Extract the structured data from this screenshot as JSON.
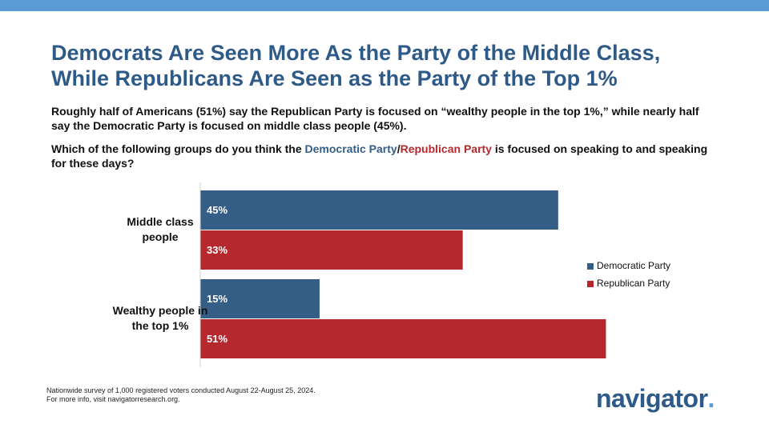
{
  "header": {
    "title_lines": [
      "Democrats Are Seen More As the Party of the Middle Class,",
      "While Republicans Are Seen as the Party of the Top 1%"
    ],
    "subtitle": "Roughly half of Americans (51%) say the Republican Party is focused on “wealthy people in the top 1%,” while nearly half say the Democratic Party is focused on middle class people (45%).",
    "question": {
      "before": "Which of the following groups do you think the ",
      "democratic": "Democratic Party",
      "separator": "/",
      "republican": "Republican Party",
      "after": " is focused on speaking to and speaking for these days?"
    }
  },
  "chart_data": {
    "type": "bar",
    "orientation": "horizontal",
    "categories": [
      "Middle class people",
      "Wealthy people in the top 1%"
    ],
    "series": [
      {
        "name": "Democratic Party",
        "color": "#355e86",
        "values": [
          45,
          15
        ],
        "value_labels": [
          "45%",
          "15%"
        ]
      },
      {
        "name": "Republican Party",
        "color": "#b5282e",
        "values": [
          33,
          51
        ],
        "value_labels": [
          "33%",
          "51%"
        ]
      }
    ],
    "legend": "right"
  },
  "footer": {
    "notes": [
      "Nationwide survey of 1,000 registered voters conducted August 22-August 25, 2024.",
      "For more info, visit navigatorresearch.org."
    ],
    "logo": "navigator",
    "logo_dot": "."
  }
}
